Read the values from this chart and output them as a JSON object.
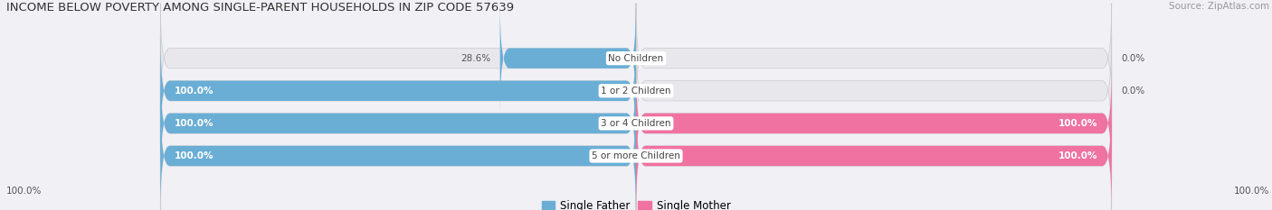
{
  "title": "INCOME BELOW POVERTY AMONG SINGLE-PARENT HOUSEHOLDS IN ZIP CODE 57639",
  "source": "Source: ZipAtlas.com",
  "categories": [
    "No Children",
    "1 or 2 Children",
    "3 or 4 Children",
    "5 or more Children"
  ],
  "single_father": [
    28.6,
    100.0,
    100.0,
    100.0
  ],
  "single_mother": [
    0.0,
    0.0,
    100.0,
    100.0
  ],
  "father_color": "#6aaed6",
  "mother_color": "#f072a0",
  "bar_bg_color": "#e8e8ec",
  "bar_height": 0.62,
  "title_fontsize": 9.5,
  "label_fontsize": 7.5,
  "cat_fontsize": 7.5,
  "legend_fontsize": 8.5,
  "source_fontsize": 7.5,
  "background_color": "#f0f0f5"
}
